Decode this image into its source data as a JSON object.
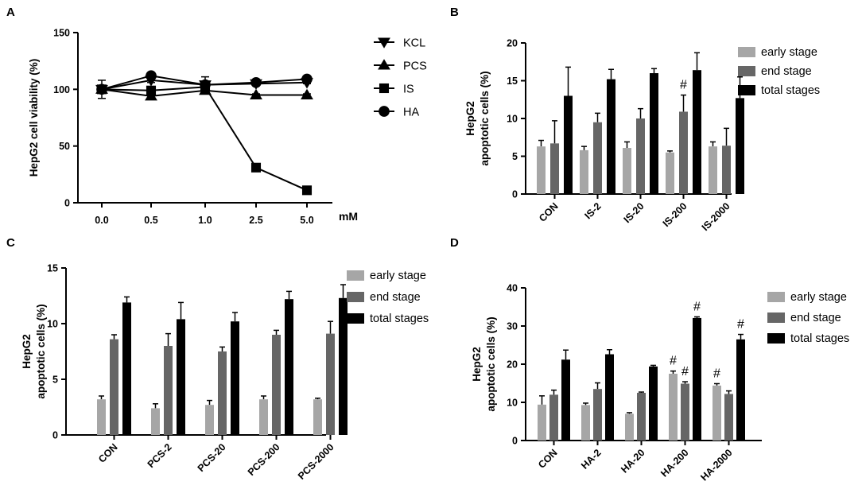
{
  "colors": {
    "early": "#a6a6a6",
    "end": "#666666",
    "total": "#000000",
    "axis": "#000000"
  },
  "chart_data": [
    {
      "panel": "A",
      "type": "line",
      "xlabel": "",
      "x_unit": "mM",
      "ylabel": "HepG2 cell viability (%)",
      "categories": [
        "0.0",
        "0.5",
        "1.0",
        "2.5",
        "5.0"
      ],
      "ylim": [
        0,
        150
      ],
      "yticks": [
        0,
        50,
        100,
        150
      ],
      "series": [
        {
          "name": "KCL",
          "marker": "triangle-down",
          "values": [
            100,
            108,
            104,
            105,
            106
          ],
          "errors": [
            0,
            2,
            3,
            1,
            1
          ]
        },
        {
          "name": "PCS",
          "marker": "triangle-up",
          "values": [
            100,
            94,
            99,
            95,
            95
          ],
          "errors": [
            0,
            2,
            3,
            1,
            1
          ]
        },
        {
          "name": "IS",
          "marker": "square",
          "values": [
            100,
            99,
            102,
            31,
            11
          ],
          "errors": [
            8,
            2,
            3,
            2,
            1
          ]
        },
        {
          "name": "HA",
          "marker": "circle",
          "values": [
            100,
            112,
            104,
            106,
            109
          ],
          "errors": [
            0,
            1,
            7,
            1,
            1
          ]
        }
      ]
    },
    {
      "panel": "B",
      "type": "bar",
      "ylabel_line1": "HepG2",
      "ylabel_line2": "apoptotic cells (%)",
      "categories": [
        "CON",
        "IS-2",
        "IS-20",
        "IS-200",
        "IS-2000"
      ],
      "ylim": [
        0,
        20
      ],
      "yticks": [
        0,
        5,
        10,
        15,
        20
      ],
      "series": [
        {
          "name": "early stage",
          "values": [
            6.3,
            5.8,
            6.1,
            5.5,
            6.3
          ],
          "errors": [
            0.8,
            0.5,
            0.8,
            0.2,
            0.6
          ]
        },
        {
          "name": "end stage",
          "values": [
            6.7,
            9.5,
            10.0,
            10.9,
            6.4
          ],
          "errors": [
            3.0,
            1.2,
            1.3,
            2.2,
            2.3
          ]
        },
        {
          "name": "total stages",
          "values": [
            13.0,
            15.2,
            16.0,
            16.4,
            12.7
          ],
          "errors": [
            3.8,
            1.3,
            0.6,
            2.3,
            2.8
          ]
        }
      ],
      "annotations": [
        {
          "category": "IS-200",
          "series": "end stage",
          "text": "#"
        }
      ]
    },
    {
      "panel": "C",
      "type": "bar",
      "ylabel_line1": "HepG2",
      "ylabel_line2": "apoptotic cells (%)",
      "categories": [
        "CON",
        "PCS-2",
        "PCS-20",
        "PCS-200",
        "PCS-2000"
      ],
      "ylim": [
        0,
        15
      ],
      "yticks": [
        0,
        5,
        10,
        15
      ],
      "series": [
        {
          "name": "early stage",
          "values": [
            3.2,
            2.4,
            2.7,
            3.2,
            3.2
          ],
          "errors": [
            0.3,
            0.4,
            0.4,
            0.3,
            0.1
          ]
        },
        {
          "name": "end stage",
          "values": [
            8.6,
            8.0,
            7.5,
            9.0,
            9.1
          ],
          "errors": [
            0.4,
            1.1,
            0.4,
            0.4,
            1.1
          ]
        },
        {
          "name": "total stages",
          "values": [
            11.9,
            10.4,
            10.2,
            12.2,
            12.3
          ],
          "errors": [
            0.5,
            1.5,
            0.8,
            0.7,
            1.2
          ]
        }
      ],
      "annotations": []
    },
    {
      "panel": "D",
      "type": "bar",
      "ylabel_line1": "HepG2",
      "ylabel_line2": "apoptotic cells (%)",
      "categories": [
        "CON",
        "HA-2",
        "HA-20",
        "HA-200",
        "HA-2000"
      ],
      "ylim": [
        0,
        40
      ],
      "yticks": [
        0,
        10,
        20,
        30,
        40
      ],
      "series": [
        {
          "name": "early stage",
          "values": [
            9.4,
            9.3,
            7.0,
            17.5,
            14.4
          ],
          "errors": [
            2.3,
            0.5,
            0.3,
            0.7,
            0.5
          ]
        },
        {
          "name": "end stage",
          "values": [
            12.0,
            13.5,
            12.5,
            14.9,
            12.2
          ],
          "errors": [
            1.2,
            1.6,
            0.2,
            0.5,
            0.8
          ]
        },
        {
          "name": "total stages",
          "values": [
            21.2,
            22.6,
            19.4,
            32.1,
            26.5
          ],
          "errors": [
            2.5,
            1.2,
            0.3,
            0.3,
            1.3
          ]
        }
      ],
      "annotations": [
        {
          "category": "HA-200",
          "series": "early stage",
          "text": "#"
        },
        {
          "category": "HA-200",
          "series": "end stage",
          "text": "#"
        },
        {
          "category": "HA-200",
          "series": "total stages",
          "text": "#"
        },
        {
          "category": "HA-2000",
          "series": "early stage",
          "text": "#"
        },
        {
          "category": "HA-2000",
          "series": "total stages",
          "text": "#"
        }
      ]
    }
  ]
}
